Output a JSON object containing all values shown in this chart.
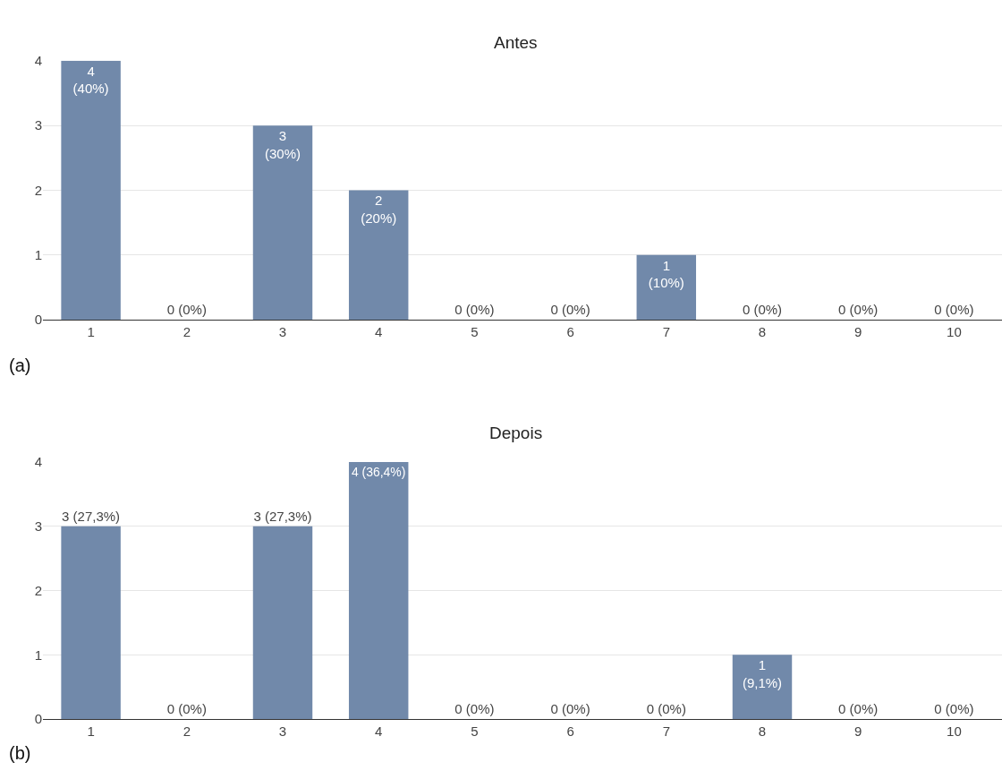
{
  "chart_data": [
    {
      "type": "bar",
      "title": "Antes",
      "categories": [
        "1",
        "2",
        "3",
        "4",
        "5",
        "6",
        "7",
        "8",
        "9",
        "10"
      ],
      "values": [
        4,
        0,
        3,
        2,
        0,
        0,
        1,
        0,
        0,
        0
      ],
      "color": "#7189aa",
      "value_labels": [
        "4\n(40%)",
        "0 (0%)",
        "3\n(30%)",
        "2\n(20%)",
        "0 (0%)",
        "0 (0%)",
        "1\n(10%)",
        "0 (0%)",
        "0 (0%)",
        "0 (0%)"
      ],
      "ylim": [
        0,
        4
      ],
      "yticks": [
        0,
        1,
        2,
        3,
        4
      ],
      "grid": "y",
      "annotations": [
        "(a)"
      ]
    },
    {
      "type": "bar",
      "title": "Depois",
      "categories": [
        "1",
        "2",
        "3",
        "4",
        "5",
        "6",
        "7",
        "8",
        "9",
        "10"
      ],
      "values": [
        3,
        0,
        3,
        4,
        0,
        0,
        0,
        1,
        0,
        0
      ],
      "color": "#7189aa",
      "value_labels": [
        "3 (27,3%)",
        "0 (0%)",
        "3 (27,3%)",
        "4 (36,4%)",
        "0 (0%)",
        "0 (0%)",
        "0 (0%)",
        "1\n(9,1%)",
        "0 (0%)",
        "0 (0%)"
      ],
      "ylim": [
        0,
        4
      ],
      "yticks": [
        0,
        1,
        2,
        3,
        4
      ],
      "grid": "y",
      "annotations": [
        "(b)"
      ]
    }
  ]
}
